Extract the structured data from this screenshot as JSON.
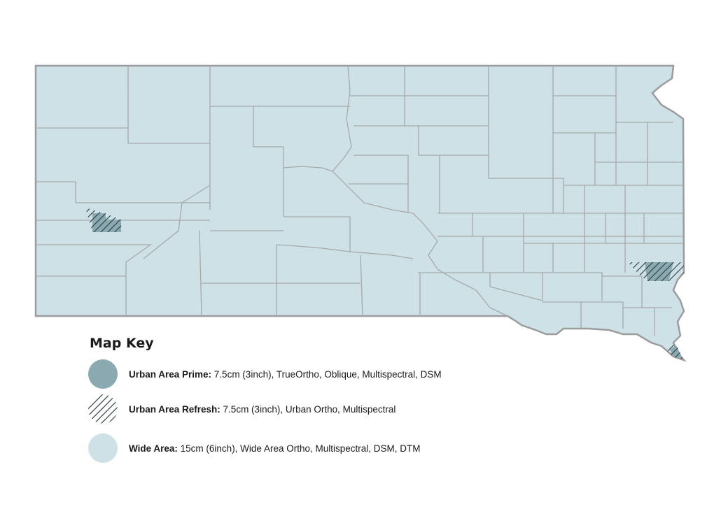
{
  "colors": {
    "wide_area": "#cde1e6",
    "urban_prime": "#8aa9b0",
    "hatch": "#2b3d40",
    "county_border": "#a7a9aa",
    "state_border": "#9a9c9d"
  },
  "map_key": {
    "title": "Map Key",
    "items": [
      {
        "swatch": "solid-dark",
        "label": "Urban Area Prime:",
        "description": " 7.5cm (3inch), TrueOrtho, Oblique, Multispectral, DSM"
      },
      {
        "swatch": "hatched",
        "label": "Urban Area Refresh:",
        "description": " 7.5cm (3inch), Urban Ortho, Multispectral"
      },
      {
        "swatch": "solid-light",
        "label": "Wide Area:",
        "description": " 15cm (6inch), Wide Area Ortho, Multispectral, DSM, DTM"
      }
    ]
  }
}
